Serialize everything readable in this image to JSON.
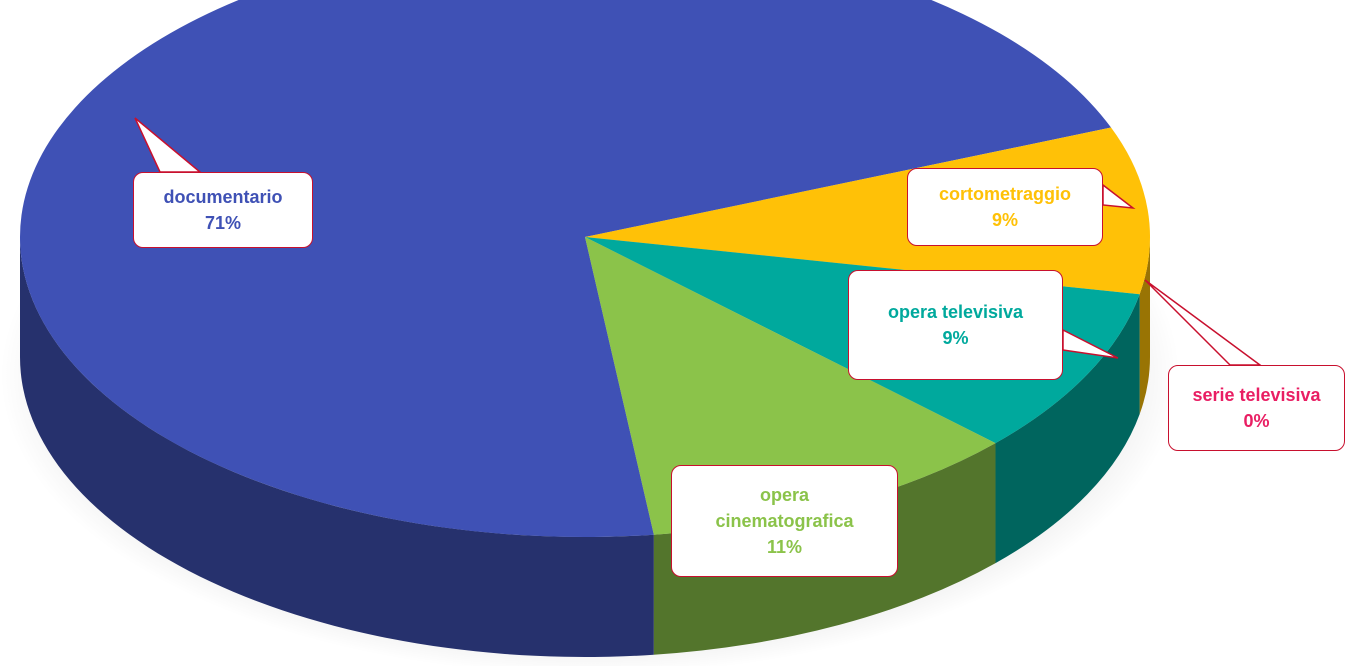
{
  "chart_data": {
    "type": "pie",
    "categories": [
      "documentario",
      "cortometraggio",
      "serie televisiva",
      "opera televisiva",
      "opera cinematografica"
    ],
    "values": [
      71,
      9,
      0,
      9,
      11
    ],
    "value_labels": [
      "71%",
      "9%",
      "0%",
      "9%",
      "11%"
    ],
    "colors": [
      "#3f51b5",
      "#ffc107",
      "#e91e63",
      "#00a99d",
      "#8bc34a"
    ],
    "label_colors": [
      "#3f51b5",
      "#ffc107",
      "#e91e63",
      "#00a99d",
      "#8bc34a"
    ]
  }
}
